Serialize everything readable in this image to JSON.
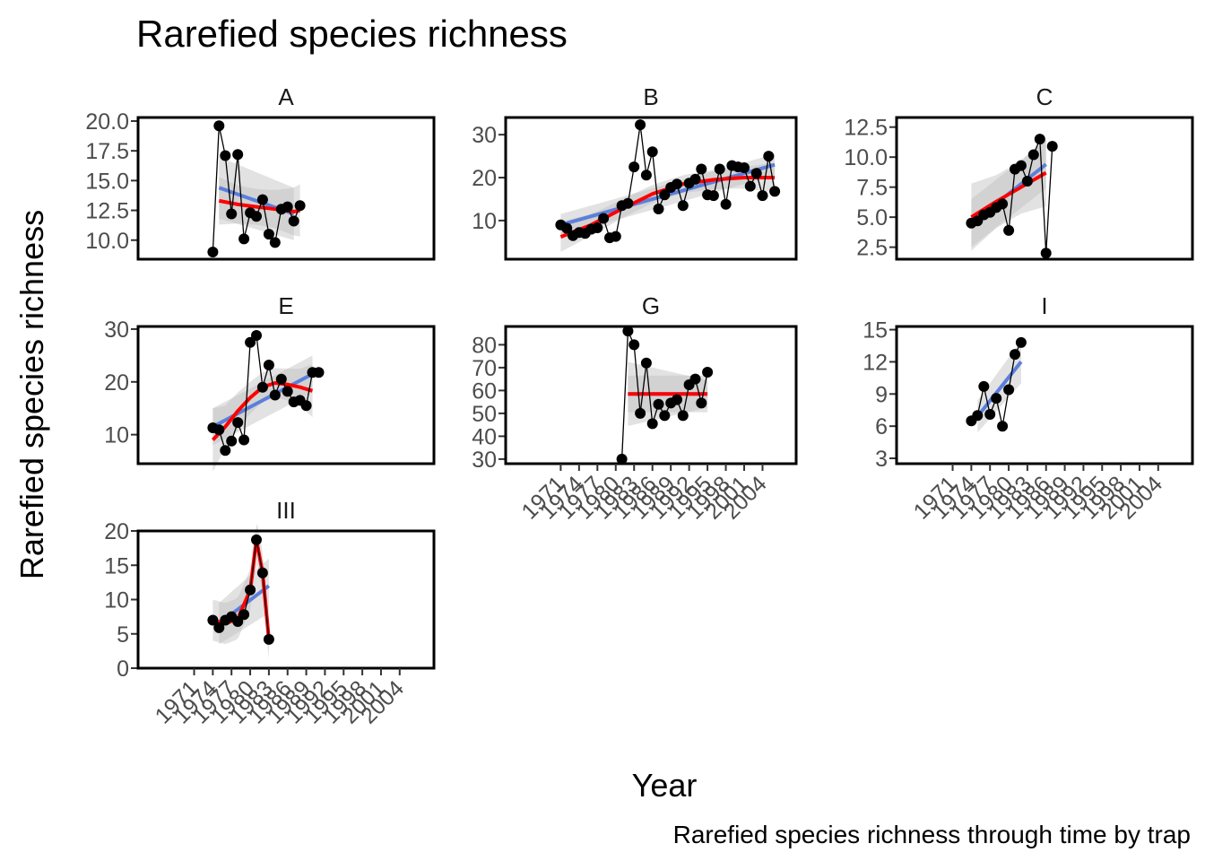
{
  "title": "Rarefied species richness",
  "xlabel": "Year",
  "ylabel": "Rarefied species richness",
  "caption": "Rarefied species richness through time by trap",
  "colors": {
    "points": "#000000",
    "lm_line": "#5B7FDB",
    "loess_line": "#FF0000",
    "ribbon": "#BEBEBE",
    "tick_text": "#4d4d4d"
  },
  "chart_data": [
    {
      "panel": "A",
      "type": "line",
      "yticks": [
        "10.0",
        "12.5",
        "15.0",
        "17.5",
        "20.0"
      ],
      "ylim": [
        8.4,
        20.3
      ],
      "x": [
        1974,
        1975,
        1976,
        1977,
        1978,
        1979,
        1980,
        1981,
        1982,
        1983,
        1984,
        1985,
        1986,
        1987,
        1988
      ],
      "values": [
        9.0,
        19.6,
        17.1,
        12.2,
        17.2,
        10.1,
        12.3,
        12.0,
        13.4,
        10.5,
        9.8,
        12.6,
        12.8,
        11.6,
        12.9
      ],
      "lm": {
        "x": [
          1975,
          1987
        ],
        "y": [
          14.4,
          12.2
        ],
        "se": [
          2.6,
          2.2
        ]
      },
      "loess": {
        "x": [
          1975,
          1978,
          1981,
          1984,
          1987,
          1988
        ],
        "y": [
          13.3,
          13.0,
          12.8,
          12.6,
          12.4,
          12.5
        ],
        "se": [
          2.0,
          1.6,
          1.5,
          1.6,
          2.0,
          2.2
        ]
      },
      "xticks": []
    },
    {
      "panel": "B",
      "type": "line",
      "yticks": [
        "10",
        "20",
        "30"
      ],
      "ylim": [
        1.0,
        34.0
      ],
      "x": [
        1971,
        1972,
        1973,
        1974,
        1975,
        1976,
        1977,
        1978,
        1979,
        1980,
        1981,
        1982,
        1983,
        1984,
        1985,
        1986,
        1987,
        1988,
        1989,
        1990,
        1991,
        1992,
        1993,
        1994,
        1995,
        1996,
        1997,
        1998,
        1999,
        2000,
        2001,
        2002,
        2003,
        2004,
        2005,
        2006
      ],
      "values": [
        9.0,
        8.2,
        6.5,
        7.2,
        7.0,
        8.0,
        8.3,
        10.5,
        6.0,
        6.3,
        13.5,
        14.0,
        22.5,
        32.3,
        20.6,
        26.0,
        12.7,
        16.0,
        17.7,
        18.5,
        13.5,
        18.7,
        19.6,
        22.0,
        16.0,
        15.8,
        22.0,
        13.8,
        22.8,
        22.5,
        22.3,
        18.0,
        21.0,
        15.8,
        25.0,
        16.8
      ],
      "lm": {
        "x": [
          1971,
          2006
        ],
        "y": [
          9.0,
          23.0
        ],
        "se": [
          2.5,
          2.5
        ]
      },
      "loess": {
        "x": [
          1971,
          1976,
          1981,
          1986,
          1991,
          1996,
          2001,
          2006
        ],
        "y": [
          6.2,
          9.0,
          12.7,
          16.2,
          18.5,
          19.5,
          20.0,
          20.0
        ],
        "se": [
          3.5,
          2.5,
          2.2,
          2.1,
          2.1,
          2.2,
          2.5,
          3.5
        ]
      },
      "xticks": []
    },
    {
      "panel": "C",
      "type": "line",
      "yticks": [
        "2.5",
        "5.0",
        "7.5",
        "10.0",
        "12.5"
      ],
      "ylim": [
        1.5,
        13.3
      ],
      "x": [
        1974,
        1975,
        1976,
        1977,
        1978,
        1979,
        1980,
        1981,
        1982,
        1983,
        1984,
        1985,
        1986,
        1987
      ],
      "values": [
        4.5,
        4.7,
        5.2,
        5.4,
        5.8,
        6.1,
        3.9,
        9.0,
        9.3,
        8.0,
        10.2,
        11.5,
        2.0,
        10.9
      ],
      "lm": {
        "x": [
          1974,
          1986
        ],
        "y": [
          4.5,
          9.4
        ],
        "se": [
          2.0,
          2.0
        ]
      },
      "loess": {
        "x": [
          1974,
          1978,
          1982,
          1986
        ],
        "y": [
          5.0,
          6.3,
          7.5,
          8.7
        ],
        "se": [
          2.8,
          2.2,
          2.2,
          2.8
        ]
      },
      "xticks": []
    },
    {
      "panel": "E",
      "type": "line",
      "yticks": [
        "10",
        "20",
        "30"
      ],
      "ylim": [
        4.5,
        30.5
      ],
      "x": [
        1974,
        1975,
        1976,
        1977,
        1978,
        1979,
        1980,
        1981,
        1982,
        1983,
        1984,
        1985,
        1986,
        1987,
        1988,
        1989,
        1990,
        1991
      ],
      "values": [
        11.3,
        10.9,
        7.0,
        8.8,
        12.3,
        9.0,
        27.5,
        28.8,
        19.0,
        23.2,
        17.5,
        20.5,
        18.2,
        16.2,
        16.5,
        15.5,
        21.8,
        21.8
      ],
      "lm": {
        "x": [
          1974,
          1990
        ],
        "y": [
          11.5,
          21.5
        ],
        "se": [
          3.5,
          3.5
        ]
      },
      "loess": {
        "x": [
          1974,
          1976,
          1978,
          1980,
          1982,
          1984,
          1986,
          1988,
          1990
        ],
        "y": [
          9.0,
          11.5,
          14.5,
          17.0,
          19.0,
          19.8,
          19.5,
          19.0,
          18.3
        ],
        "se": [
          6.0,
          4.0,
          3.5,
          3.0,
          2.8,
          2.8,
          3.0,
          3.5,
          5.0
        ]
      },
      "xticks": []
    },
    {
      "panel": "G",
      "type": "line",
      "yticks": [
        "30",
        "40",
        "50",
        "60",
        "70",
        "80"
      ],
      "ylim": [
        28.0,
        88.0
      ],
      "x": [
        1981,
        1982,
        1983,
        1984,
        1985,
        1986,
        1987,
        1988,
        1989,
        1990,
        1991,
        1992,
        1993,
        1994,
        1995
      ],
      "values": [
        30.0,
        86.0,
        80.0,
        50.0,
        72.0,
        45.5,
        54.0,
        49.0,
        54.5,
        56.0,
        49.0,
        62.5,
        65.0,
        54.5,
        68.0
      ],
      "lm": {
        "x": [
          1982,
          1995
        ],
        "y": [
          58.5,
          58.5
        ],
        "se": [
          14.0,
          6.0
        ]
      },
      "loess": {
        "x": [
          1982,
          1995
        ],
        "y": [
          58.5,
          58.5
        ],
        "se": [
          8.0,
          8.0
        ]
      },
      "xticks": [
        "1971",
        "1974",
        "1977",
        "1980",
        "1983",
        "1986",
        "1989",
        "1992",
        "1995",
        "1998",
        "2001",
        "2004"
      ]
    },
    {
      "panel": "I",
      "type": "line",
      "yticks": [
        "3",
        "6",
        "9",
        "12",
        "15"
      ],
      "ylim": [
        2.5,
        15.3
      ],
      "x": [
        1974,
        1975,
        1976,
        1977,
        1978,
        1979,
        1980,
        1981,
        1982
      ],
      "values": [
        6.5,
        7.0,
        9.7,
        7.1,
        8.6,
        6.0,
        9.4,
        12.7,
        13.8
      ],
      "lm": {
        "x": [
          1975,
          1982
        ],
        "y": [
          6.9,
          12.0
        ],
        "se": [
          1.5,
          2.0
        ]
      },
      "loess": null,
      "xticks": [
        "1971",
        "1974",
        "1977",
        "1980",
        "1983",
        "1986",
        "1989",
        "1992",
        "1995",
        "1998",
        "2001",
        "2004"
      ]
    },
    {
      "panel": "III",
      "type": "line",
      "yticks": [
        "0",
        "5",
        "10",
        "15",
        "20"
      ],
      "ylim": [
        0.0,
        20.0
      ],
      "x": [
        1974,
        1975,
        1976,
        1977,
        1978,
        1979,
        1980,
        1981,
        1982,
        1983
      ],
      "values": [
        7.0,
        5.9,
        7.0,
        7.5,
        6.8,
        7.8,
        11.4,
        18.7,
        13.9,
        4.2
      ],
      "lm": {
        "x": [
          1975,
          1983
        ],
        "y": [
          6.5,
          12.0
        ],
        "se": [
          3.0,
          4.0
        ]
      },
      "loess": {
        "x": [
          1974,
          1976,
          1978,
          1980,
          1981,
          1982,
          1983
        ],
        "y": [
          7.0,
          6.5,
          7.2,
          11.4,
          18.7,
          13.9,
          4.2
        ],
        "se": [
          3.0,
          3.0,
          3.0,
          3.0,
          3.0,
          3.0,
          3.0
        ]
      },
      "xticks": [
        "1971",
        "1974",
        "1977",
        "1980",
        "1983",
        "1986",
        "1989",
        "1992",
        "1995",
        "1998",
        "2001",
        "2004"
      ]
    }
  ]
}
